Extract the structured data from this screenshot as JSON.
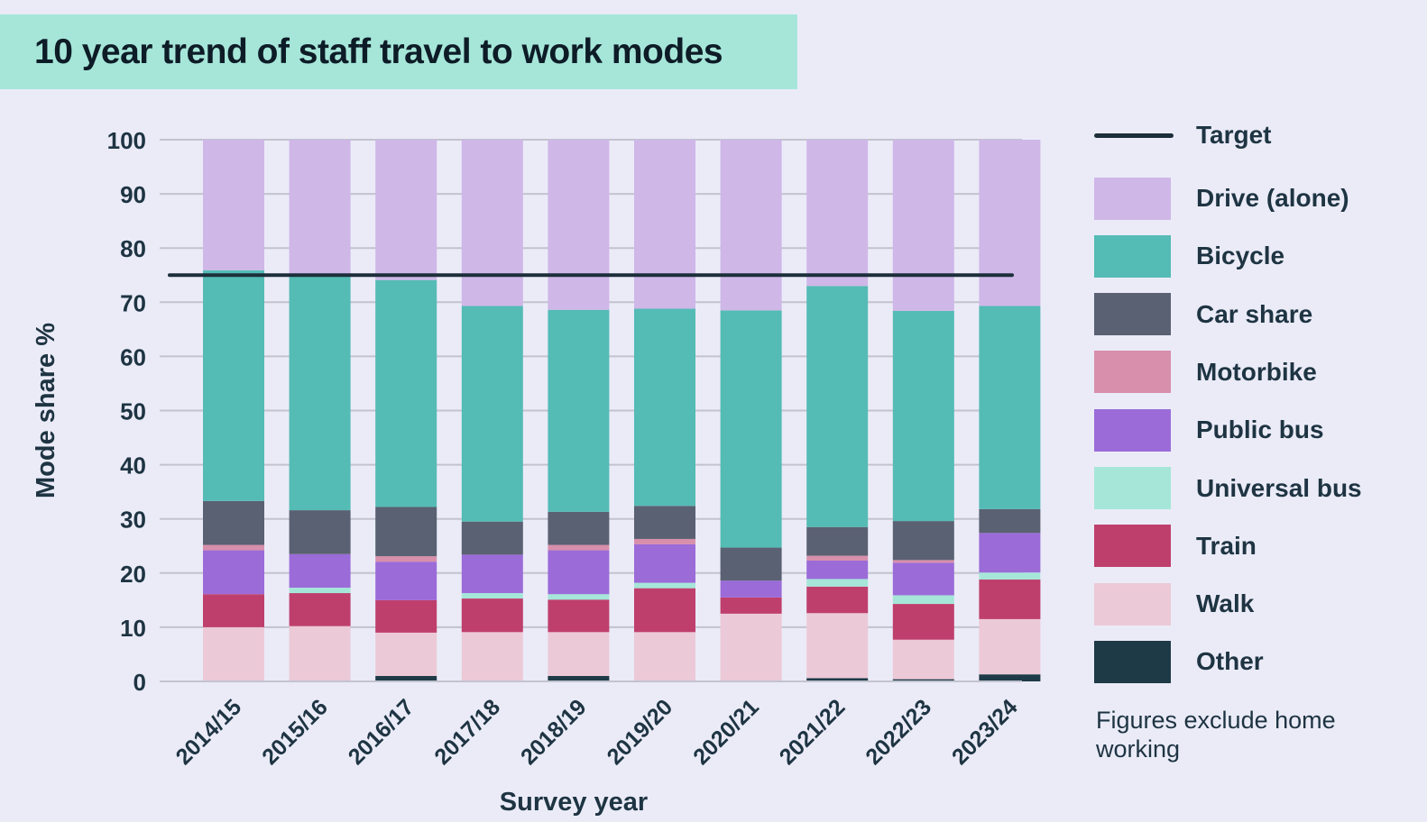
{
  "title": "10 year trend of staff travel to work modes",
  "footnote": "Figures exclude home working",
  "colors": {
    "background": "#ebebf8",
    "title_band": "#a6e6d9",
    "target_line": "#1c2e3a",
    "grid": "#c3c3d0",
    "axis_text": "#1e3442"
  },
  "chart_data": {
    "type": "bar",
    "stacked": true,
    "xlabel": "Survey year",
    "ylabel": "Mode share %",
    "ylim": [
      0,
      100
    ],
    "yticks": [
      "0",
      "10",
      "20",
      "30",
      "40",
      "50",
      "60",
      "70",
      "80",
      "90",
      "100"
    ],
    "categories": [
      "2014/15",
      "2015/16",
      "2016/17",
      "2017/18",
      "2018/19",
      "2019/20",
      "2020/21",
      "2021/22",
      "2022/23",
      "2023/24"
    ],
    "grid": true,
    "legend_position": "right",
    "target": {
      "name": "Target",
      "value": 75,
      "color": "#1c2e3a"
    },
    "series": [
      {
        "name": "Other",
        "color": "#1e3a47",
        "values": [
          0,
          0,
          1.0,
          0,
          1.0,
          0,
          0,
          0.6,
          0.4,
          1.3
        ]
      },
      {
        "name": "Walk",
        "color": "#ecc9d6",
        "values": [
          10.0,
          10.2,
          8.0,
          9.1,
          8.1,
          9.1,
          12.5,
          12.0,
          7.3,
          10.2
        ]
      },
      {
        "name": "Train",
        "color": "#bf3f6c",
        "values": [
          6.1,
          6.1,
          6.0,
          6.2,
          6.0,
          8.1,
          3.0,
          4.9,
          6.6,
          7.3
        ]
      },
      {
        "name": "Universal bus",
        "color": "#a6e6d9",
        "values": [
          0,
          1.0,
          0,
          1.0,
          1.0,
          1.0,
          0,
          1.4,
          1.6,
          1.3
        ]
      },
      {
        "name": "Public bus",
        "color": "#9b6bd8",
        "values": [
          8.1,
          6.2,
          7.1,
          7.1,
          8.1,
          7.1,
          3.1,
          3.4,
          6.0,
          7.3
        ]
      },
      {
        "name": "Motorbike",
        "color": "#d78fab",
        "values": [
          1.0,
          0,
          1.0,
          0,
          1.0,
          1.0,
          0,
          0.9,
          0.5,
          0
        ]
      },
      {
        "name": "Car share",
        "color": "#5a6172",
        "values": [
          8.1,
          8.1,
          9.1,
          6.1,
          6.1,
          6.1,
          6.1,
          5.3,
          7.2,
          4.4
        ]
      },
      {
        "name": "Bicycle",
        "color": "#54bbb5",
        "values": [
          42.6,
          43.4,
          41.9,
          39.8,
          37.3,
          36.4,
          43.8,
          44.5,
          38.8,
          37.5
        ]
      },
      {
        "name": "Drive (alone)",
        "color": "#cfb7e8",
        "values": [
          24.1,
          25.0,
          25.9,
          30.7,
          31.4,
          31.2,
          31.5,
          27.0,
          31.6,
          30.7
        ]
      }
    ]
  },
  "legend": [
    {
      "label": "Target",
      "kind": "line",
      "color": "#1c2e3a"
    },
    {
      "label": "Drive (alone)",
      "kind": "swatch",
      "color": "#cfb7e8"
    },
    {
      "label": "Bicycle",
      "kind": "swatch",
      "color": "#54bbb5"
    },
    {
      "label": "Car share",
      "kind": "swatch",
      "color": "#5a6172"
    },
    {
      "label": "Motorbike",
      "kind": "swatch",
      "color": "#d78fab"
    },
    {
      "label": "Public bus",
      "kind": "swatch",
      "color": "#9b6bd8"
    },
    {
      "label": "Universal bus",
      "kind": "swatch",
      "color": "#a6e6d9"
    },
    {
      "label": "Train",
      "kind": "swatch",
      "color": "#bf3f6c"
    },
    {
      "label": "Walk",
      "kind": "swatch",
      "color": "#ecc9d6"
    },
    {
      "label": "Other",
      "kind": "swatch",
      "color": "#1e3a47"
    }
  ]
}
